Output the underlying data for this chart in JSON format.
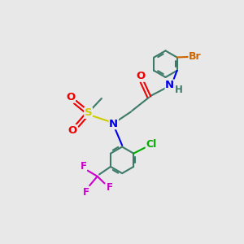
{
  "bg_color": "#e8e8e8",
  "bond_color": "#3d7a6a",
  "bond_width": 1.5,
  "atom_colors": {
    "N": "#0000ee",
    "O": "#ee0000",
    "S": "#cccc00",
    "Br": "#cc6600",
    "Cl": "#00aa00",
    "F": "#cc00cc",
    "C": "#3d7a6a",
    "H": "#3d7a6a"
  },
  "font_size": 8.5,
  "fig_size": [
    3.0,
    3.0
  ],
  "dpi": 100
}
